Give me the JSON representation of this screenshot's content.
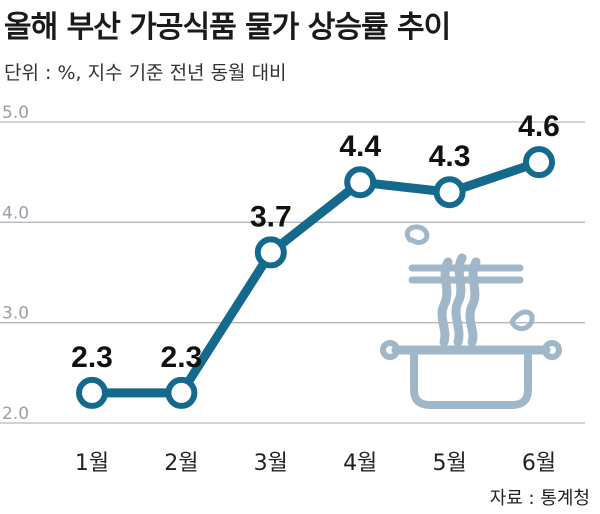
{
  "title": "올해 부산 가공식품 물가 상승률 추이",
  "subtitle": "단위 : %, 지수 기준 전년 동월 대비",
  "source": "자료 : 통계청",
  "colors": {
    "line": "#14698c",
    "grid": "#b5b9bd",
    "illustration": "#9fb7c8"
  },
  "illustration_icon": "steaming-pot-icon",
  "chart_data": {
    "type": "line",
    "categories": [
      "1월",
      "2월",
      "3월",
      "4월",
      "5월",
      "6월"
    ],
    "values": [
      2.3,
      2.3,
      3.7,
      4.4,
      4.3,
      4.6
    ],
    "data_labels": [
      "2.3",
      "2.3",
      "3.7",
      "4.4",
      "4.3",
      "4.6"
    ],
    "yticks": [
      2.0,
      3.0,
      4.0,
      5.0
    ],
    "ytick_labels": [
      "2.0",
      "3.0",
      "4.0",
      "5.0"
    ],
    "ylim": [
      2.0,
      5.0
    ],
    "grid": true,
    "legend": "none"
  }
}
